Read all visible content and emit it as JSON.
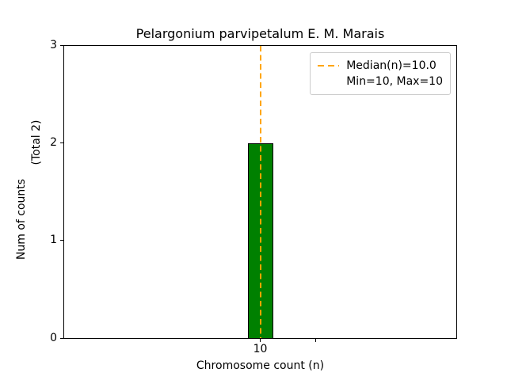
{
  "chart_data": {
    "type": "bar",
    "title": "Pelargonium parvipetalum E. M. Marais",
    "xlabel": "Chromosome count (n)",
    "ylabel": "Num of counts",
    "ylabel_note": "(Total 2)",
    "categories": [
      "10"
    ],
    "values": [
      2
    ],
    "ylim": [
      0,
      3
    ],
    "yticks": [
      "0",
      "1",
      "2",
      "3"
    ],
    "xticks": [
      "10"
    ],
    "grid": false,
    "background_color": "#ffffff",
    "bar_color": "#008000",
    "bar_edge_color": "#000000",
    "median_line": {
      "value": 10.0,
      "color": "#FFA500",
      "style": "dashed"
    },
    "legend": {
      "position": "upper right",
      "entries": [
        {
          "label": "Median(n)=10.0",
          "handle": "dashed-line",
          "color": "#FFA500"
        },
        {
          "label": "Min=10, Max=10",
          "handle": "none"
        }
      ]
    }
  }
}
